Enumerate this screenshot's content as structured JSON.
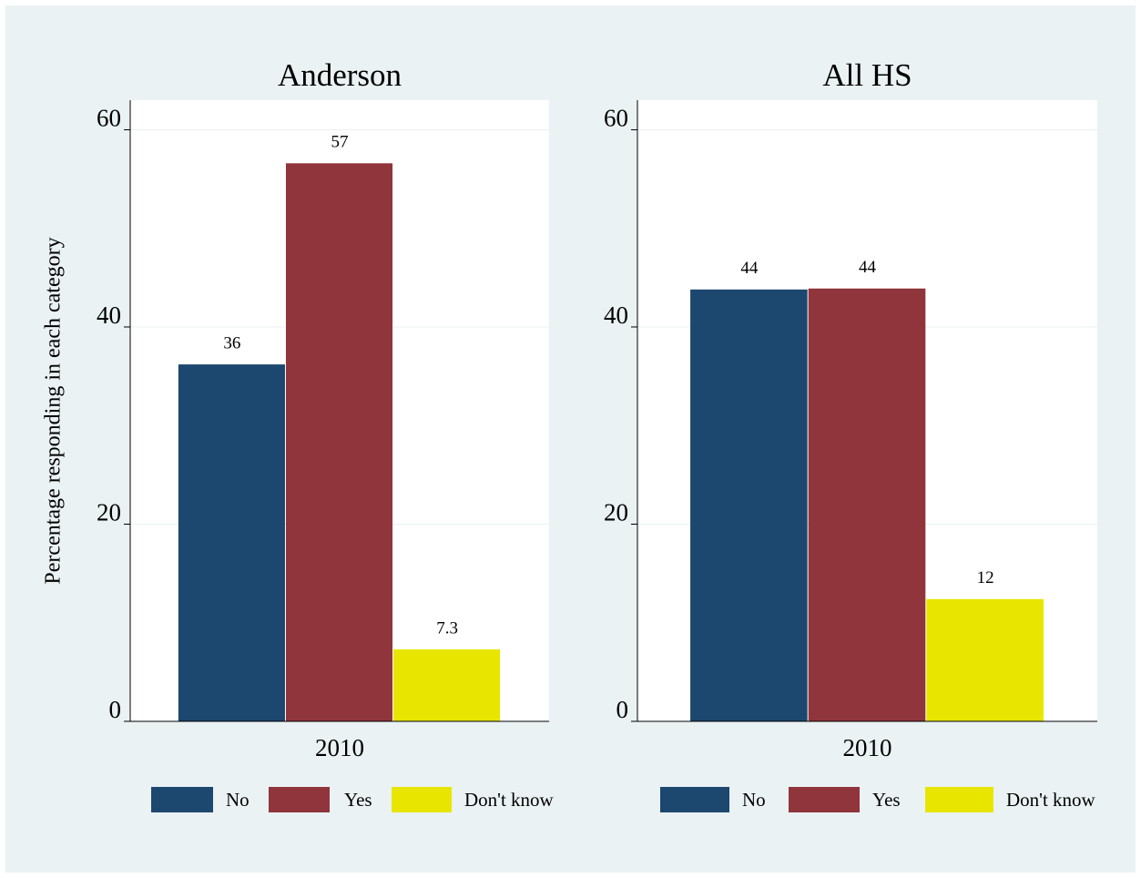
{
  "chart_data": [
    {
      "type": "bar",
      "title": "Anderson",
      "y_label": "Percentage responding in each category",
      "categories": [
        "2010"
      ],
      "series": [
        {
          "name": "No",
          "color": "#1c476f",
          "values": [
            36.2
          ],
          "value_labels": [
            "36"
          ]
        },
        {
          "name": "Yes",
          "color": "#90353b",
          "values": [
            56.6
          ],
          "value_labels": [
            "57"
          ]
        },
        {
          "name": "Don't know",
          "color": "#e8e600",
          "values": [
            7.3
          ],
          "value_labels": [
            "7.3"
          ]
        }
      ],
      "ylim": [
        0,
        63
      ],
      "yticks": [
        0,
        20,
        40,
        60
      ],
      "grid": true
    },
    {
      "type": "bar",
      "title": "All HS",
      "categories": [
        "2010"
      ],
      "series": [
        {
          "name": "No",
          "color": "#1c476f",
          "values": [
            43.8
          ],
          "value_labels": [
            "44"
          ]
        },
        {
          "name": "Yes",
          "color": "#90353b",
          "values": [
            43.9
          ],
          "value_labels": [
            "44"
          ]
        },
        {
          "name": "Don't know",
          "color": "#e8e600",
          "values": [
            12.4
          ],
          "value_labels": [
            "12"
          ]
        }
      ],
      "ylim": [
        0,
        63
      ],
      "yticks": [
        0,
        20,
        40,
        60
      ],
      "grid": true
    }
  ]
}
